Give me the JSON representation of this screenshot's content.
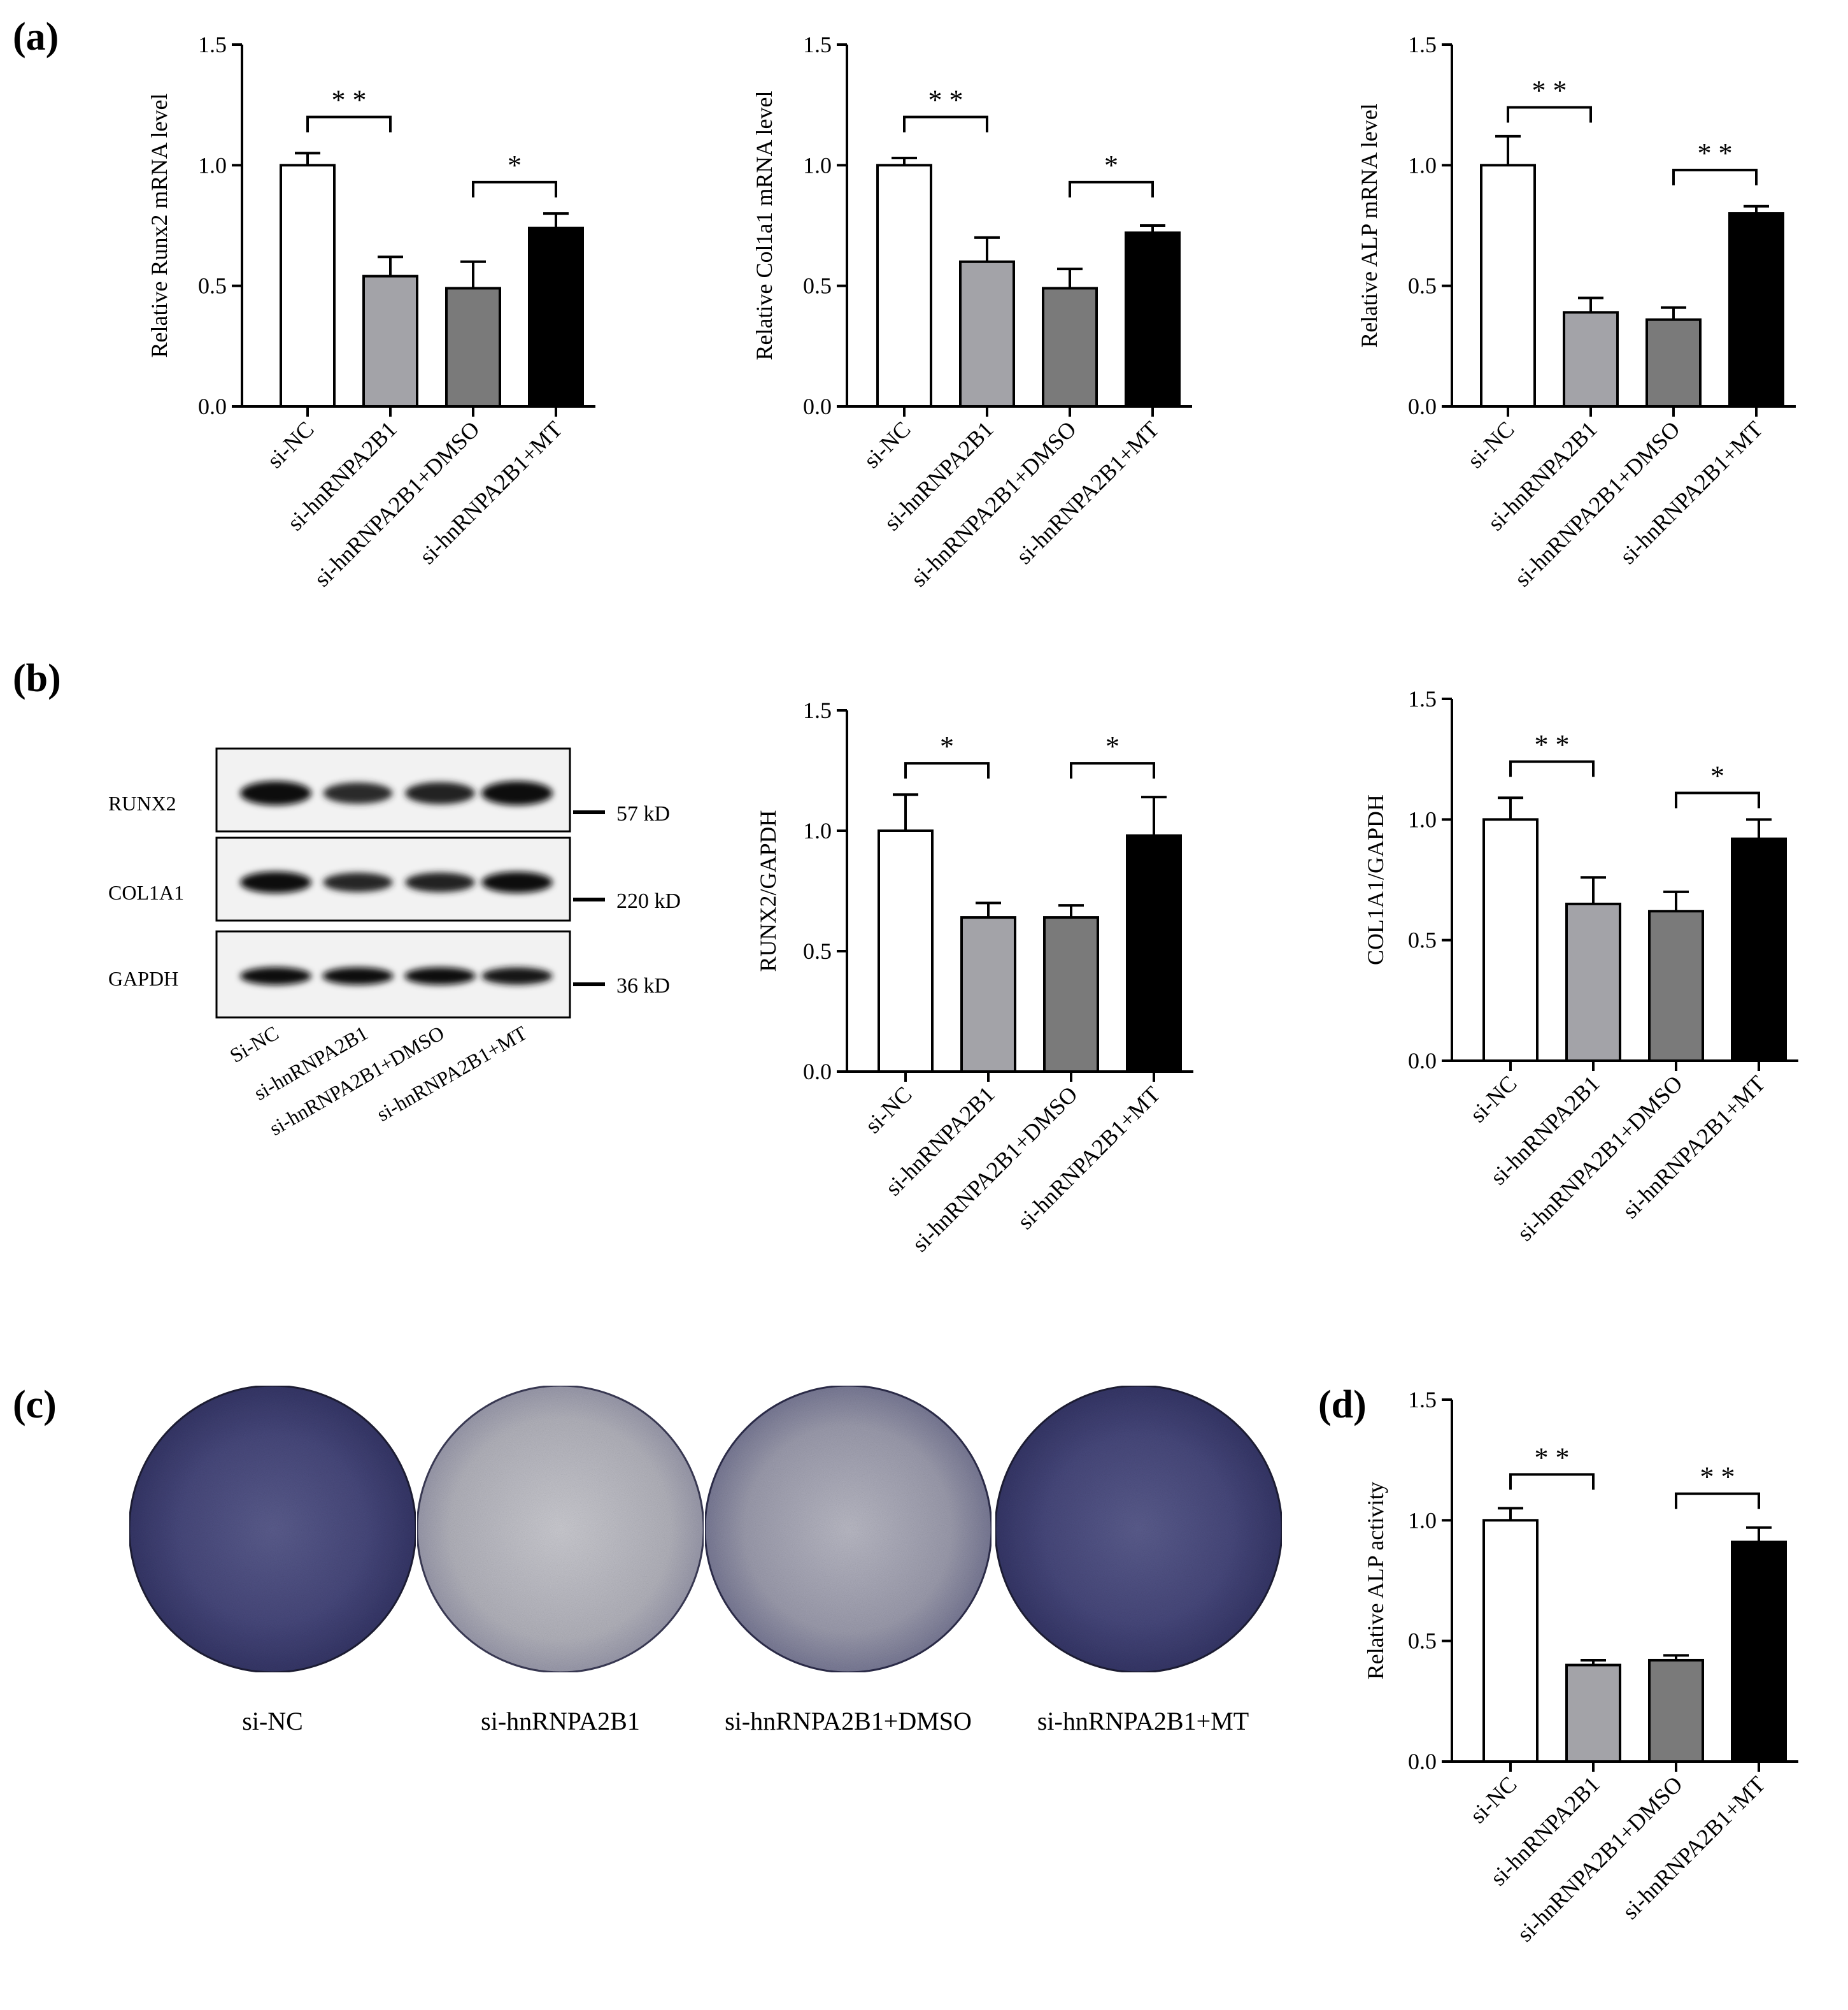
{
  "panels": {
    "a": "(a)",
    "b": "(b)",
    "c": "(c)",
    "d": "(d)"
  },
  "colors": {
    "si_nc": "#ffffff",
    "si_hnrnpa2b1": "#a3a3a8",
    "si_hnrnpa2b1_dmso": "#7a7a7a",
    "si_hnrnpa2b1_mt": "#000000",
    "plate_dark": "#3e3f6e",
    "plate_light": "#bfbfc6"
  },
  "chart_data": [
    {
      "id": "runx2_mrna",
      "type": "bar",
      "ylabel": "Relative Runx2 mRNA level",
      "ylim": [
        0,
        1.5
      ],
      "yticks": [
        "0.0",
        "0.5",
        "1.0",
        "1.5"
      ],
      "categories": [
        "si-NC",
        "si-hnRNPA2B1",
        "si-hnRNPA2B1+DMSO",
        "si-hnRNPA2B1+MT"
      ],
      "values": [
        1.0,
        0.54,
        0.49,
        0.74
      ],
      "errors": [
        0.05,
        0.08,
        0.11,
        0.06
      ],
      "significance": [
        {
          "from": 0,
          "to": 1,
          "label": "* *",
          "y": 1.2
        },
        {
          "from": 2,
          "to": 3,
          "label": "*",
          "y": 0.93
        }
      ]
    },
    {
      "id": "col1a1_mrna",
      "type": "bar",
      "ylabel": "Relative Col1a1 mRNA level",
      "ylim": [
        0,
        1.5
      ],
      "yticks": [
        "0.0",
        "0.5",
        "1.0",
        "1.5"
      ],
      "categories": [
        "si-NC",
        "si-hnRNPA2B1",
        "si-hnRNPA2B1+DMSO",
        "si-hnRNPA2B1+MT"
      ],
      "values": [
        1.0,
        0.6,
        0.49,
        0.72
      ],
      "errors": [
        0.03,
        0.1,
        0.08,
        0.03
      ],
      "significance": [
        {
          "from": 0,
          "to": 1,
          "label": "* *",
          "y": 1.2
        },
        {
          "from": 2,
          "to": 3,
          "label": "*",
          "y": 0.93
        }
      ]
    },
    {
      "id": "alp_mrna",
      "type": "bar",
      "ylabel": "Relative ALP mRNA level",
      "ylim": [
        0,
        1.5
      ],
      "yticks": [
        "0.0",
        "0.5",
        "1.0",
        "1.5"
      ],
      "categories": [
        "si-NC",
        "si-hnRNPA2B1",
        "si-hnRNPA2B1+DMSO",
        "si-hnRNPA2B1+MT"
      ],
      "values": [
        1.0,
        0.39,
        0.36,
        0.8
      ],
      "errors": [
        0.12,
        0.06,
        0.05,
        0.03
      ],
      "significance": [
        {
          "from": 0,
          "to": 1,
          "label": "* *",
          "y": 1.24
        },
        {
          "from": 2,
          "to": 3,
          "label": "* *",
          "y": 0.98
        }
      ]
    },
    {
      "id": "runx2_gapdh",
      "type": "bar",
      "ylabel": "RUNX2/GAPDH",
      "ylim": [
        0,
        1.5
      ],
      "yticks": [
        "0.0",
        "0.5",
        "1.0",
        "1.5"
      ],
      "categories": [
        "si-NC",
        "si-hnRNPA2B1",
        "si-hnRNPA2B1+DMSO",
        "si-hnRNPA2B1+MT"
      ],
      "values": [
        1.0,
        0.64,
        0.64,
        0.98
      ],
      "errors": [
        0.15,
        0.06,
        0.05,
        0.16
      ],
      "significance": [
        {
          "from": 0,
          "to": 1,
          "label": "*",
          "y": 1.28
        },
        {
          "from": 2,
          "to": 3,
          "label": "*",
          "y": 1.28
        }
      ]
    },
    {
      "id": "col1a1_gapdh",
      "type": "bar",
      "ylabel": "COL1A1/GAPDH",
      "ylim": [
        0,
        1.5
      ],
      "yticks": [
        "0.0",
        "0.5",
        "1.0",
        "1.5"
      ],
      "categories": [
        "si-NC",
        "si-hnRNPA2B1",
        "si-hnRNPA2B1+DMSO",
        "si-hnRNPA2B1+MT"
      ],
      "values": [
        1.0,
        0.65,
        0.62,
        0.92
      ],
      "errors": [
        0.09,
        0.11,
        0.08,
        0.08
      ],
      "significance": [
        {
          "from": 0,
          "to": 1,
          "label": "* *",
          "y": 1.24
        },
        {
          "from": 2,
          "to": 3,
          "label": "*",
          "y": 1.11
        }
      ]
    },
    {
      "id": "alp_activity",
      "type": "bar",
      "ylabel": "Relative ALP activity",
      "ylim": [
        0,
        1.5
      ],
      "yticks": [
        "0.0",
        "0.5",
        "1.0",
        "1.5"
      ],
      "categories": [
        "si-NC",
        "si-hnRNPA2B1",
        "si-hnRNPA2B1+DMSO",
        "si-hnRNPA2B1+MT"
      ],
      "values": [
        1.0,
        0.4,
        0.42,
        0.91
      ],
      "errors": [
        0.05,
        0.02,
        0.02,
        0.06
      ],
      "significance": [
        {
          "from": 0,
          "to": 1,
          "label": "* *",
          "y": 1.19
        },
        {
          "from": 2,
          "to": 3,
          "label": "* *",
          "y": 1.11
        }
      ]
    }
  ],
  "blot": {
    "rows": [
      {
        "name": "RUNX2",
        "kd": "57 kD"
      },
      {
        "name": "COL1A1",
        "kd": "220 kD"
      },
      {
        "name": "GAPDH",
        "kd": "36 kD"
      }
    ],
    "lanes": [
      "Si-NC",
      "si-hnRNPA2B1",
      "si-hnRNPA2B1+DMSO",
      "si-hnRNPA2B1+MT"
    ],
    "intensity": [
      [
        1.0,
        0.6,
        0.7,
        1.0
      ],
      [
        1.0,
        0.65,
        0.7,
        0.95
      ],
      [
        1.0,
        0.95,
        0.95,
        0.9
      ]
    ]
  },
  "plates": {
    "labels": [
      "si-NC",
      "si-hnRNPA2B1",
      "si-hnRNPA2B1+DMSO",
      "si-hnRNPA2B1+MT"
    ],
    "stain_level": [
      0.95,
      0.25,
      0.4,
      0.9
    ]
  }
}
